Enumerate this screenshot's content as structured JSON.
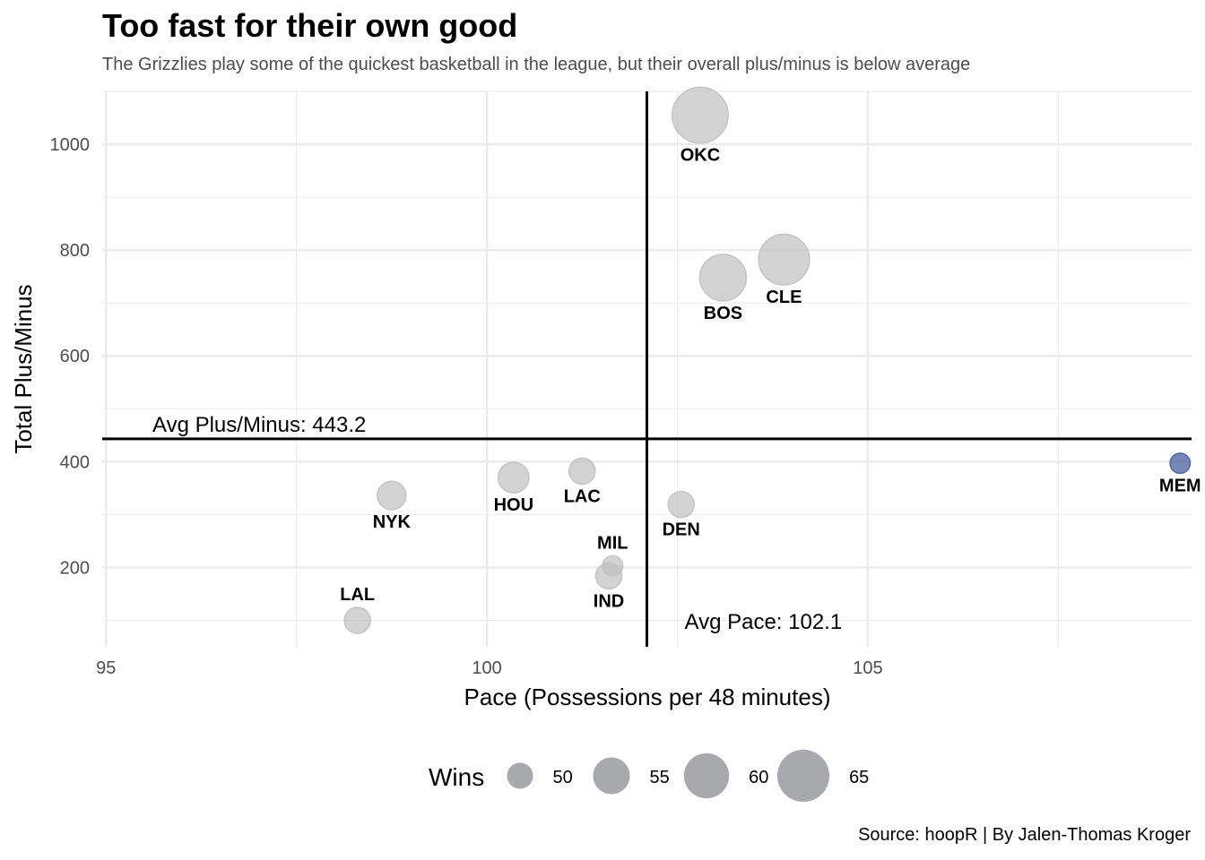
{
  "title": "Too fast for their own good",
  "subtitle": "The Grizzlies play some of the quickest basketball in the league, but their overall plus/minus is below average",
  "caption": "Source: hoopR | By Jalen-Thomas Kroger",
  "colors": {
    "point": "#c0c0c0",
    "highlight": "#4a5fa0",
    "grid": "#ebebeb",
    "reference": "#000000",
    "legend_point": "#a3a4a8"
  },
  "chart_data": {
    "type": "scatter",
    "xlabel": "Pace (Possessions per 48 minutes)",
    "ylabel": "Total Plus/Minus",
    "xlim": [
      94.95,
      109.25
    ],
    "ylim": [
      50,
      1100
    ],
    "x_ticks": [
      95,
      100,
      105
    ],
    "y_ticks": [
      200,
      400,
      600,
      800,
      1000
    ],
    "grid": true,
    "size_legend": {
      "title": "Wins",
      "position": "bottom",
      "values": [
        50,
        55,
        60,
        65
      ]
    },
    "reference_lines": {
      "avg_plus_minus": {
        "value": 443.2,
        "label": "Avg Plus/Minus: 443.2"
      },
      "avg_pace": {
        "value": 102.1,
        "label": "Avg Pace: 102.1"
      }
    },
    "points": [
      {
        "team": "OKC",
        "x": 102.8,
        "y": 1055,
        "wins": 68
      },
      {
        "team": "CLE",
        "x": 103.9,
        "y": 782,
        "wins": 64
      },
      {
        "team": "BOS",
        "x": 103.1,
        "y": 748,
        "wins": 61
      },
      {
        "team": "MEM",
        "x": 109.1,
        "y": 397,
        "wins": 48,
        "highlight": true
      },
      {
        "team": "HOU",
        "x": 100.35,
        "y": 370,
        "wins": 52
      },
      {
        "team": "LAC",
        "x": 101.25,
        "y": 382,
        "wins": 50
      },
      {
        "team": "NYK",
        "x": 98.75,
        "y": 336,
        "wins": 51
      },
      {
        "team": "DEN",
        "x": 102.55,
        "y": 319,
        "wins": 50
      },
      {
        "team": "MIL",
        "x": 101.65,
        "y": 203,
        "wins": 48
      },
      {
        "team": "IND",
        "x": 101.6,
        "y": 184,
        "wins": 50
      },
      {
        "team": "LAL",
        "x": 98.3,
        "y": 100,
        "wins": 50
      }
    ]
  }
}
